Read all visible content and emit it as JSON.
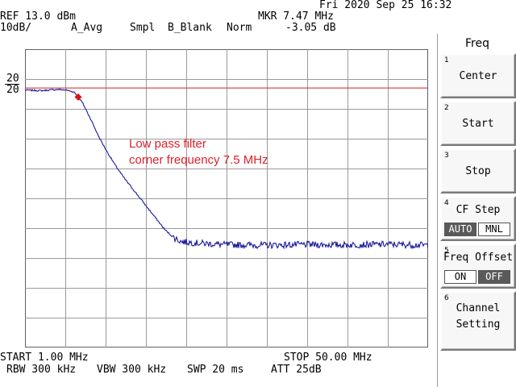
{
  "header": {
    "datetime": "Fri 2020 Sep 25 16:32",
    "ref_level": "REF 13.0 dBm",
    "scale": "10dB/",
    "detector": "A_Avg",
    "sample_mode": "Smpl",
    "trace_b": "B_Blank",
    "trace_mode": "Norm",
    "marker_freq": "MKR 7.47 MHz",
    "marker_level": "-3.05 dB"
  },
  "left_scale": {
    "upper": "20",
    "lower": "20"
  },
  "annotation": {
    "line1": "Low pass filter",
    "line2": "corner frequency 7.5 MHz"
  },
  "footer": {
    "start": "START 1.00 MHz",
    "stop": "STOP 50.00 MHz",
    "rbw": "RBW 300 kHz",
    "vbw": "VBW 300 kHz",
    "sweep": "SWP 20 ms",
    "atten": "ATT 25dB"
  },
  "softkeys": {
    "title": "Freq",
    "keys": [
      {
        "num": "1",
        "label": "Center"
      },
      {
        "num": "2",
        "label": "Start"
      },
      {
        "num": "3",
        "label": "Stop"
      },
      {
        "num": "4",
        "label": "CF Step",
        "opt_a": "AUTO",
        "opt_b": "MNL",
        "selected": "AUTO"
      },
      {
        "num": "5",
        "label": "Freq Offset",
        "opt_a": "ON",
        "opt_b": "OFF",
        "selected": "OFF"
      },
      {
        "num": "6",
        "label": "Channel",
        "label2": "Setting"
      }
    ]
  },
  "colors": {
    "trace": "#1a1a9a",
    "reference_line": "#d02020",
    "marker": "#e01010",
    "annotation": "#e0202a",
    "grid": "#9a9a9a"
  },
  "chart_data": {
    "type": "line",
    "title": "",
    "xlabel": "",
    "ylabel": "",
    "x_unit": "MHz",
    "y_unit": "dB",
    "xlim": [
      1.0,
      50.0
    ],
    "ylim": [
      -87.0,
      13.0
    ],
    "reference_line_db": 0.0,
    "marker": {
      "x": 7.47,
      "y": -3.05
    },
    "series": [
      {
        "x": [
          1.0,
          2.0,
          3.0,
          4.0,
          5.0,
          6.0,
          7.0,
          7.47,
          8.0,
          9.0,
          10.0,
          11.0,
          12.0,
          13.0,
          14.0,
          15.0,
          16.0,
          17.0,
          18.0,
          19.0,
          20.0,
          22.0,
          25.0,
          30.0,
          35.0,
          40.0,
          45.0,
          50.0
        ],
        "y": [
          -0.7,
          -0.8,
          -0.9,
          -0.7,
          -0.5,
          -0.7,
          -1.4,
          -3.05,
          -5.0,
          -10.5,
          -16.5,
          -21.5,
          -26.0,
          -30.0,
          -33.5,
          -37.0,
          -40.5,
          -44.0,
          -47.5,
          -50.0,
          -51.5,
          -52.0,
          -52.5,
          -52.7,
          -52.5,
          -52.6,
          -52.4,
          -52.7
        ]
      }
    ]
  }
}
